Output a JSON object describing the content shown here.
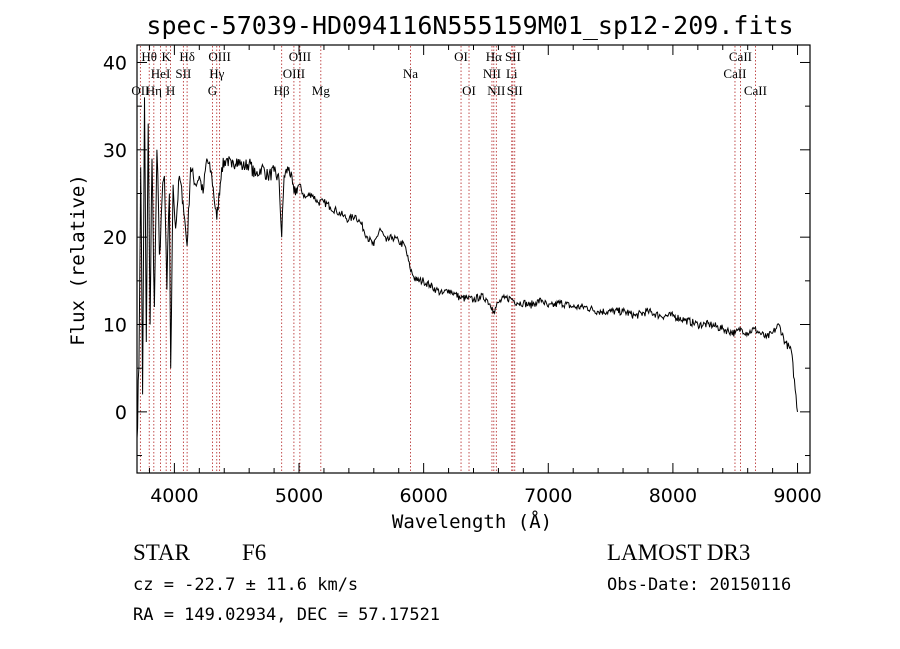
{
  "chart_data": {
    "type": "line",
    "title": "spec-57039-HD094116N555159M01_sp12-209.fits",
    "xlabel": "Wavelength (Å)",
    "ylabel": "Flux (relative)",
    "xlim": [
      3700,
      9100
    ],
    "ylim": [
      -7,
      42
    ],
    "xticks": [
      4000,
      5000,
      6000,
      7000,
      8000,
      9000
    ],
    "yticks": [
      0,
      10,
      20,
      30,
      40
    ],
    "series": [
      {
        "name": "flux",
        "x": [
          3700,
          3715,
          3730,
          3745,
          3760,
          3775,
          3790,
          3805,
          3820,
          3840,
          3860,
          3880,
          3900,
          3920,
          3940,
          3960,
          3970,
          3990,
          4010,
          4040,
          4070,
          4102,
          4130,
          4170,
          4200,
          4230,
          4260,
          4300,
          4340,
          4380,
          4420,
          4460,
          4500,
          4550,
          4600,
          4650,
          4700,
          4750,
          4800,
          4840,
          4861,
          4880,
          4920,
          4960,
          5000,
          5050,
          5100,
          5150,
          5200,
          5250,
          5300,
          5350,
          5400,
          5450,
          5500,
          5550,
          5600,
          5650,
          5700,
          5750,
          5800,
          5850,
          5890,
          5920,
          5950,
          6000,
          6050,
          6100,
          6150,
          6200,
          6250,
          6300,
          6350,
          6400,
          6450,
          6500,
          6550,
          6563,
          6600,
          6650,
          6700,
          6750,
          6800,
          6850,
          6900,
          6950,
          7000,
          7100,
          7200,
          7300,
          7400,
          7500,
          7600,
          7700,
          7800,
          7900,
          8000,
          8100,
          8200,
          8300,
          8400,
          8500,
          8550,
          8600,
          8650,
          8700,
          8750,
          8800,
          8850,
          8900,
          8950,
          9000
        ],
        "values": [
          -3,
          5,
          28,
          2,
          36,
          8,
          33,
          10,
          29,
          12,
          30,
          18,
          24,
          27,
          14,
          25,
          5,
          26,
          21,
          27,
          24,
          19,
          28,
          26,
          27,
          25,
          29,
          27,
          22,
          28,
          29,
          28,
          29,
          28,
          28.5,
          27,
          28,
          27,
          27.5,
          26.5,
          20,
          27,
          28,
          25,
          26,
          24.5,
          25,
          24,
          24,
          23.5,
          23,
          22.5,
          22,
          22.5,
          21.5,
          20,
          19,
          21,
          19.5,
          20,
          19.5,
          19,
          16.5,
          15.5,
          15,
          15,
          14.5,
          14,
          13.5,
          14,
          13.5,
          13,
          13,
          12.8,
          13.2,
          13,
          12,
          11.5,
          12.5,
          13,
          13,
          12.5,
          12.5,
          12.2,
          12.5,
          12.8,
          12,
          12.5,
          12,
          12,
          11.5,
          11.5,
          11.5,
          11,
          11.5,
          11,
          11,
          10.5,
          10,
          10,
          9.5,
          9,
          9.5,
          9,
          9.5,
          9,
          8.5,
          9,
          10,
          8,
          7,
          0
        ]
      }
    ],
    "lines": [
      {
        "label": "OII",
        "x": 3727,
        "row": 3
      },
      {
        "label": "Hθ",
        "x": 3798,
        "row": 1
      },
      {
        "label": "Hη",
        "x": 3835,
        "row": 3
      },
      {
        "label": "HeI",
        "x": 3889,
        "row": 2
      },
      {
        "label": "K",
        "x": 3934,
        "row": 1
      },
      {
        "label": "H",
        "x": 3969,
        "row": 3
      },
      {
        "label": "SII",
        "x": 4072,
        "row": 2
      },
      {
        "label": "Hδ",
        "x": 4102,
        "row": 1
      },
      {
        "label": "G",
        "x": 4305,
        "row": 3
      },
      {
        "label": "Hγ",
        "x": 4340,
        "row": 2
      },
      {
        "label": "OIII",
        "x": 4363,
        "row": 1
      },
      {
        "label": "Hβ",
        "x": 4861,
        "row": 3
      },
      {
        "label": "OIII",
        "x": 4959,
        "row": 2
      },
      {
        "label": "OIII",
        "x": 5007,
        "row": 1
      },
      {
        "label": "Mg",
        "x": 5175,
        "row": 3
      },
      {
        "label": "Na",
        "x": 5894,
        "row": 2
      },
      {
        "label": "OI",
        "x": 6300,
        "row": 1
      },
      {
        "label": "OI",
        "x": 6364,
        "row": 3
      },
      {
        "label": "NII",
        "x": 6548,
        "row": 2
      },
      {
        "label": "Hα",
        "x": 6563,
        "row": 1
      },
      {
        "label": "NII",
        "x": 6583,
        "row": 3
      },
      {
        "label": "Li",
        "x": 6707,
        "row": 2
      },
      {
        "label": "SII",
        "x": 6716,
        "row": 1
      },
      {
        "label": "SII",
        "x": 6731,
        "row": 3
      },
      {
        "label": "CaII",
        "x": 8498,
        "row": 2
      },
      {
        "label": "CaII",
        "x": 8542,
        "row": 1
      },
      {
        "label": "CaII",
        "x": 8662,
        "row": 3
      }
    ]
  },
  "info": {
    "object_class": "STAR",
    "subclass": "F6",
    "survey": "LAMOST DR3",
    "redshift": "cz = -22.7 ± 11.6 km/s",
    "obs_date": "Obs-Date: 20150116",
    "coords": "RA = 149.02934, DEC =  57.17521"
  },
  "colors": {
    "spectrum": "#000000",
    "line_marker": "#b22222",
    "background": "#ffffff"
  }
}
